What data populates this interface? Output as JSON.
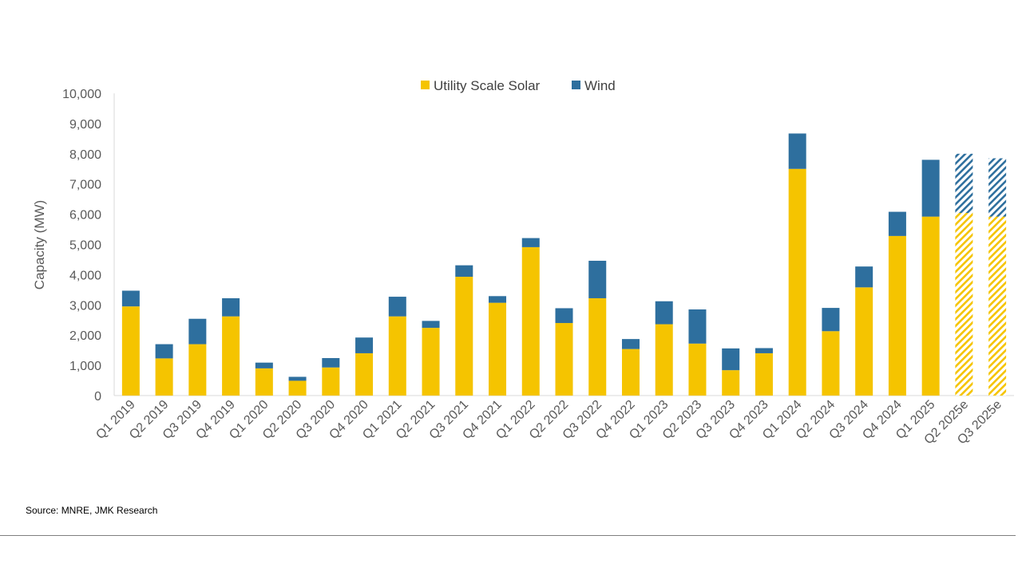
{
  "colors": {
    "solar": "#F5C400",
    "wind": "#2E6F9E",
    "axis": "#d9d9d9",
    "tick_text": "#595959"
  },
  "source_text": "Source: MNRE, JMK Research",
  "chart_data": {
    "type": "bar",
    "stacked": true,
    "ylabel": "Capacity (MW)",
    "ylim": [
      0,
      10000
    ],
    "yticks": [
      0,
      1000,
      2000,
      3000,
      4000,
      5000,
      6000,
      7000,
      8000,
      9000,
      10000
    ],
    "ytick_labels": [
      "0",
      "1,000",
      "2,000",
      "3,000",
      "4,000",
      "5,000",
      "6,000",
      "7,000",
      "8,000",
      "9,000",
      "10,000"
    ],
    "legend_position": "top-center",
    "categories": [
      "Q1 2019",
      "Q2 2019",
      "Q3 2019",
      "Q4 2019",
      "Q1 2020",
      "Q2 2020",
      "Q3 2020",
      "Q4 2020",
      "Q1 2021",
      "Q2 2021",
      "Q3 2021",
      "Q4 2021",
      "Q1 2022",
      "Q2 2022",
      "Q3 2022",
      "Q4 2022",
      "Q1 2023",
      "Q2 2023",
      "Q3 2023",
      "Q4 2023",
      "Q1 2024",
      "Q2 2024",
      "Q3 2024",
      "Q4 2024",
      "Q1 2025",
      "Q2 2025e",
      "Q3 2025e"
    ],
    "estimated": [
      "Q2 2025e",
      "Q3 2025e"
    ],
    "series": [
      {
        "name": "Utility Scale Solar",
        "color": "#F5C400",
        "values": [
          2950,
          1230,
          1700,
          2620,
          900,
          490,
          930,
          1400,
          2620,
          2240,
          3930,
          3070,
          4910,
          2400,
          3220,
          1540,
          2360,
          1720,
          840,
          1400,
          7500,
          2130,
          3580,
          5280,
          5920,
          6040,
          5920
        ]
      },
      {
        "name": "Wind",
        "color": "#2E6F9E",
        "values": [
          520,
          470,
          840,
          600,
          190,
          130,
          310,
          520,
          650,
          230,
          380,
          220,
          300,
          490,
          1240,
          330,
          760,
          1130,
          720,
          170,
          1170,
          770,
          690,
          800,
          1880,
          1960,
          1930
        ]
      }
    ]
  }
}
